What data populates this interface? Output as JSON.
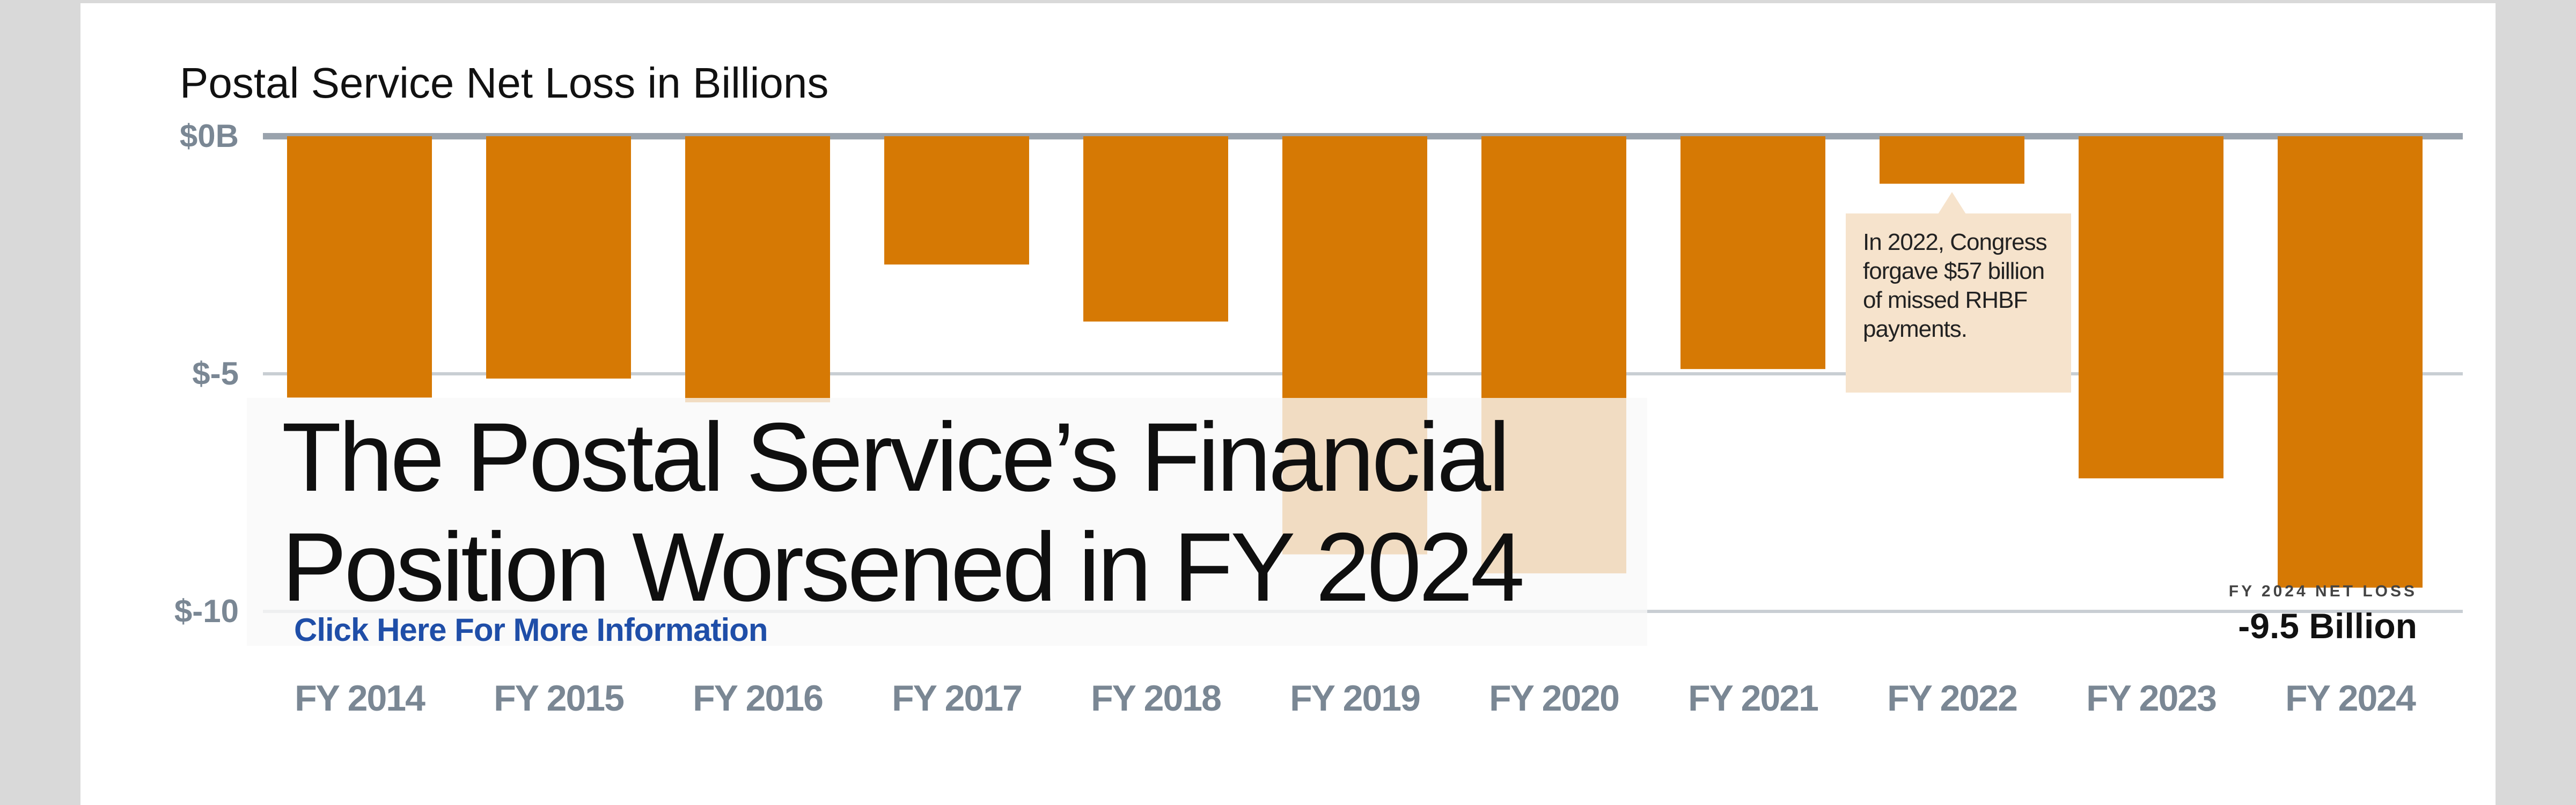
{
  "chart_data": {
    "type": "bar",
    "title": "Postal Service Net Loss in Billions",
    "categories": [
      "FY 2014",
      "FY 2015",
      "FY 2016",
      "FY 2017",
      "FY 2018",
      "FY 2019",
      "FY 2020",
      "FY 2021",
      "FY 2022",
      "FY 2023",
      "FY 2024"
    ],
    "values": [
      -5.5,
      -5.1,
      -5.6,
      -2.7,
      -3.9,
      -8.8,
      -9.2,
      -4.9,
      -1.0,
      -7.2,
      -9.5
    ],
    "y_ticks": [
      "$0B",
      "$-5",
      "$-10"
    ],
    "ylim": [
      -10,
      0
    ],
    "grid": true,
    "bar_color": "#d67904",
    "annotation": {
      "category": "FY 2022",
      "lines": [
        "In 2022, Congress",
        "forgave $57 billion",
        "of missed RHBF",
        "payments."
      ],
      "bg_color": "#f6e3cc"
    },
    "callout": {
      "category": "FY 2024",
      "label": "FY 2024 NET LOSS",
      "value": "-9.5 Billion"
    }
  },
  "headline": {
    "line1": "The Postal Service’s Financial",
    "line2": "Position Worsened in FY 2024"
  },
  "link": {
    "label": "Click Here For More Information"
  }
}
